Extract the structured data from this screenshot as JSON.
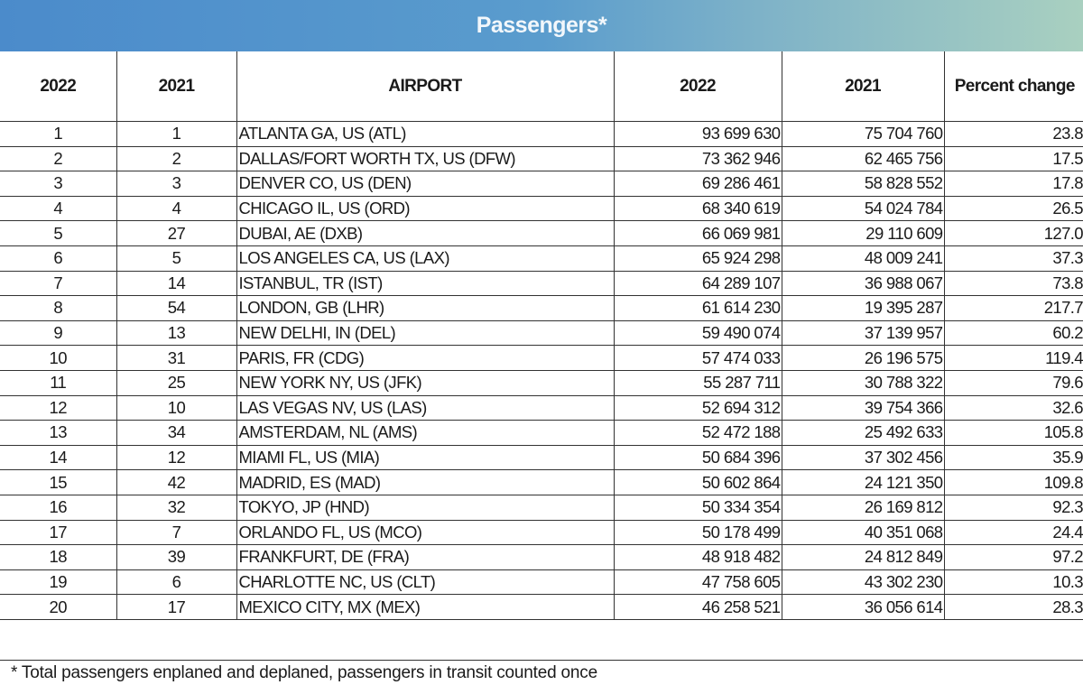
{
  "title": "Passengers*",
  "colors": {
    "banner_start": "#4b8bcb",
    "banner_end": "#a9d0c0",
    "banner_text": "#f2f7fb"
  },
  "columns": [
    "2022",
    "2021",
    "AIRPORT",
    "2022",
    "2021",
    "Percent change"
  ],
  "rows": [
    {
      "rank_2022": "1",
      "rank_2021": "1",
      "airport": "ATLANTA GA, US (ATL)",
      "pax_2022": "93 699 630",
      "pax_2021": "75 704 760",
      "pct": "23.8"
    },
    {
      "rank_2022": "2",
      "rank_2021": "2",
      "airport": "DALLAS/FORT WORTH TX, US (DFW)",
      "pax_2022": "73 362 946",
      "pax_2021": "62 465 756",
      "pct": "17.5"
    },
    {
      "rank_2022": "3",
      "rank_2021": "3",
      "airport": "DENVER CO, US (DEN)",
      "pax_2022": "69 286 461",
      "pax_2021": "58 828 552",
      "pct": "17.8"
    },
    {
      "rank_2022": "4",
      "rank_2021": "4",
      "airport": "CHICAGO IL, US (ORD)",
      "pax_2022": "68 340 619",
      "pax_2021": "54 024 784",
      "pct": "26.5"
    },
    {
      "rank_2022": "5",
      "rank_2021": "27",
      "airport": "DUBAI, AE (DXB)",
      "pax_2022": "66 069 981",
      "pax_2021": "29 110 609",
      "pct": "127.0"
    },
    {
      "rank_2022": "6",
      "rank_2021": "5",
      "airport": "LOS ANGELES CA, US (LAX)",
      "pax_2022": "65 924 298",
      "pax_2021": "48 009 241",
      "pct": "37.3"
    },
    {
      "rank_2022": "7",
      "rank_2021": "14",
      "airport": "ISTANBUL, TR (IST)",
      "pax_2022": "64 289 107",
      "pax_2021": "36 988 067",
      "pct": "73.8"
    },
    {
      "rank_2022": "8",
      "rank_2021": "54",
      "airport": "LONDON, GB (LHR)",
      "pax_2022": "61 614 230",
      "pax_2021": "19 395 287",
      "pct": "217.7"
    },
    {
      "rank_2022": "9",
      "rank_2021": "13",
      "airport": "NEW DELHI, IN (DEL)",
      "pax_2022": "59 490 074",
      "pax_2021": "37 139 957",
      "pct": "60.2"
    },
    {
      "rank_2022": "10",
      "rank_2021": "31",
      "airport": "PARIS, FR (CDG)",
      "pax_2022": "57 474 033",
      "pax_2021": "26 196 575",
      "pct": "119.4"
    },
    {
      "rank_2022": "11",
      "rank_2021": "25",
      "airport": "NEW YORK NY, US (JFK)",
      "pax_2022": "55 287 711",
      "pax_2021": "30 788 322",
      "pct": "79.6"
    },
    {
      "rank_2022": "12",
      "rank_2021": "10",
      "airport": "LAS VEGAS NV, US (LAS)",
      "pax_2022": "52 694 312",
      "pax_2021": "39 754 366",
      "pct": "32.6"
    },
    {
      "rank_2022": "13",
      "rank_2021": "34",
      "airport": "AMSTERDAM, NL (AMS)",
      "pax_2022": "52 472 188",
      "pax_2021": "25 492 633",
      "pct": "105.8"
    },
    {
      "rank_2022": "14",
      "rank_2021": "12",
      "airport": "MIAMI FL, US (MIA)",
      "pax_2022": "50 684 396",
      "pax_2021": "37 302 456",
      "pct": "35.9"
    },
    {
      "rank_2022": "15",
      "rank_2021": "42",
      "airport": "MADRID, ES (MAD)",
      "pax_2022": "50 602 864",
      "pax_2021": "24 121 350",
      "pct": "109.8"
    },
    {
      "rank_2022": "16",
      "rank_2021": "32",
      "airport": "TOKYO, JP (HND)",
      "pax_2022": "50 334 354",
      "pax_2021": "26 169 812",
      "pct": "92.3"
    },
    {
      "rank_2022": "17",
      "rank_2021": "7",
      "airport": "ORLANDO FL, US (MCO)",
      "pax_2022": "50 178 499",
      "pax_2021": "40 351 068",
      "pct": "24.4"
    },
    {
      "rank_2022": "18",
      "rank_2021": "39",
      "airport": "FRANKFURT, DE (FRA)",
      "pax_2022": "48 918 482",
      "pax_2021": "24 812 849",
      "pct": "97.2"
    },
    {
      "rank_2022": "19",
      "rank_2021": "6",
      "airport": "CHARLOTTE NC, US (CLT)",
      "pax_2022": "47 758 605",
      "pax_2021": "43 302 230",
      "pct": "10.3"
    },
    {
      "rank_2022": "20",
      "rank_2021": "17",
      "airport": "MEXICO CITY, MX (MEX)",
      "pax_2022": "46 258 521",
      "pax_2021": "36 056 614",
      "pct": "28.3"
    }
  ],
  "footnote": "* Total passengers enplaned and deplaned, passengers in transit counted once"
}
